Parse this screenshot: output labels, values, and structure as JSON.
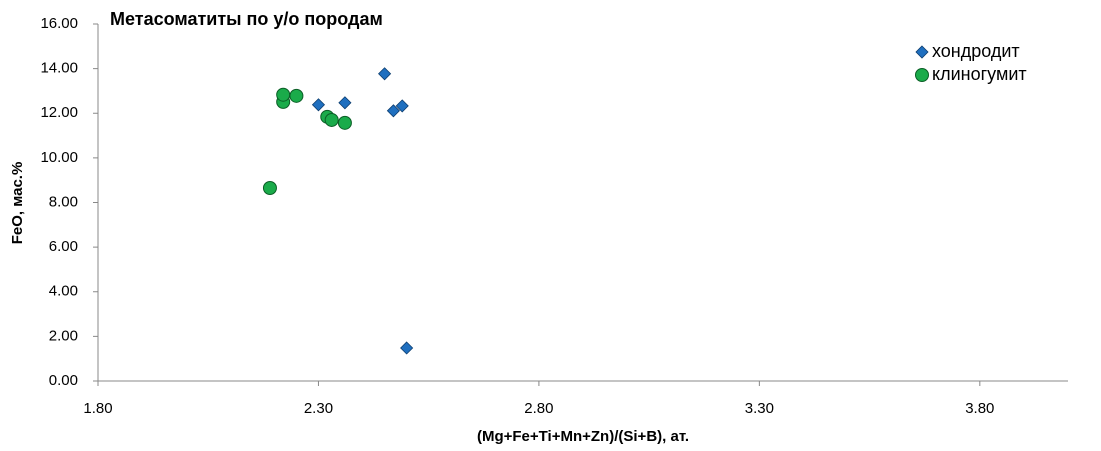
{
  "chart_data": {
    "type": "scatter",
    "title": "Метасоматиты по у/о породам",
    "x_label": "(Mg+Fe+Ti+Mn+Zn)/(Si+B), ат.",
    "y_label": "FeO, мас.%",
    "xlim": [
      1.8,
      4.0
    ],
    "ylim": [
      0,
      16
    ],
    "xticks": [
      {
        "value": 1.8,
        "label": "1.80"
      },
      {
        "value": 2.3,
        "label": "2.30"
      },
      {
        "value": 2.8,
        "label": "2.80"
      },
      {
        "value": 3.3,
        "label": "3.30"
      },
      {
        "value": 3.8,
        "label": "3.80"
      }
    ],
    "yticks": [
      {
        "value": 0,
        "label": "0.00"
      },
      {
        "value": 2,
        "label": "2.00"
      },
      {
        "value": 4,
        "label": "4.00"
      },
      {
        "value": 6,
        "label": "6.00"
      },
      {
        "value": 8,
        "label": "8.00"
      },
      {
        "value": 10,
        "label": "10.00"
      },
      {
        "value": 12,
        "label": "12.00"
      },
      {
        "value": 14,
        "label": "14.00"
      },
      {
        "value": 16,
        "label": "16.00"
      }
    ],
    "grid": false,
    "legend": "top-right",
    "series": [
      {
        "name": "хондродит",
        "color": "#1f6fbf",
        "marker": "diamond",
        "x": [
          2.3,
          2.36,
          2.45,
          2.47,
          2.49,
          2.5
        ],
        "values": [
          12.38,
          12.47,
          13.77,
          12.11,
          12.33,
          1.48
        ]
      },
      {
        "name": "клиногумит",
        "color": "#1aab4a",
        "marker": "circle",
        "x": [
          2.19,
          2.22,
          2.22,
          2.25,
          2.32,
          2.33,
          2.36
        ],
        "values": [
          8.65,
          12.51,
          12.83,
          12.78,
          11.84,
          11.7,
          11.57
        ]
      }
    ]
  }
}
